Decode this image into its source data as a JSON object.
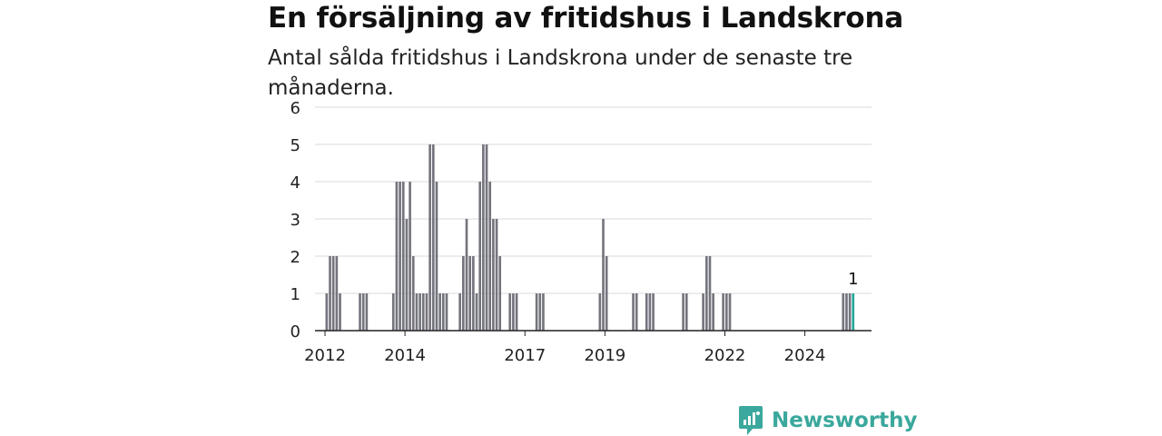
{
  "header": {
    "title": "En försäljning av fritidshus i Landskrona",
    "subtitle": "Antal sålda fritidshus i Landskrona under de senaste tre månaderna."
  },
  "brand": {
    "name": "Newsworthy",
    "color": "#3aa89c"
  },
  "colors": {
    "bar": "#74747e",
    "highlight": "#23a79b",
    "grid": "#d9d9d9",
    "axis": "#222222"
  },
  "chart_data": {
    "type": "bar",
    "title": "En försäljning av fritidshus i Landskrona",
    "subtitle": "Antal sålda fritidshus i Landskrona under de senaste tre månaderna.",
    "xlabel": "",
    "ylabel": "",
    "ylim": [
      0,
      6
    ],
    "yticks": [
      0,
      1,
      2,
      3,
      4,
      5,
      6
    ],
    "xlim": [
      "2011-10",
      "2025-09"
    ],
    "xticks": [
      "2012",
      "2014",
      "2017",
      "2019",
      "2022",
      "2024"
    ],
    "grid": true,
    "series": [
      {
        "months": [
          "2012-01",
          "2012-02",
          "2012-03",
          "2012-04",
          "2012-05",
          "2012-06",
          "2012-07",
          "2012-11",
          "2012-12",
          "2013-01",
          "2013-09",
          "2013-10",
          "2013-11",
          "2013-12",
          "2014-01",
          "2014-02",
          "2014-03",
          "2014-04",
          "2014-05",
          "2014-06",
          "2014-07",
          "2014-08",
          "2014-09",
          "2014-10",
          "2014-11",
          "2014-12",
          "2015-01",
          "2015-02",
          "2015-03",
          "2015-05",
          "2015-06",
          "2015-07",
          "2015-08",
          "2015-09",
          "2015-10",
          "2015-11",
          "2015-12",
          "2016-01",
          "2016-02",
          "2016-03",
          "2016-04",
          "2016-05",
          "2016-08",
          "2016-09",
          "2016-10",
          "2017-04",
          "2017-05",
          "2017-06",
          "2018-11",
          "2018-12",
          "2019-01",
          "2019-09",
          "2019-10",
          "2020-01",
          "2020-02",
          "2020-03",
          "2020-12",
          "2021-01",
          "2021-06",
          "2021-07",
          "2021-08",
          "2021-09",
          "2021-12",
          "2022-01",
          "2022-02",
          "2024-12",
          "2025-01",
          "2025-02",
          "2025-03"
        ],
        "values": [
          1,
          2,
          2,
          2,
          1,
          0,
          0,
          1,
          1,
          1,
          1,
          4,
          4,
          4,
          3,
          4,
          2,
          1,
          1,
          1,
          1,
          5,
          5,
          4,
          1,
          1,
          1,
          0,
          0,
          1,
          2,
          3,
          2,
          2,
          1,
          4,
          5,
          5,
          4,
          3,
          3,
          2,
          1,
          1,
          1,
          1,
          1,
          1,
          1,
          3,
          2,
          1,
          1,
          1,
          1,
          1,
          1,
          1,
          1,
          2,
          2,
          1,
          1,
          1,
          1,
          1,
          1,
          1,
          1
        ]
      }
    ],
    "highlight": {
      "month": "2025-03",
      "value": 1,
      "label": "1"
    }
  }
}
